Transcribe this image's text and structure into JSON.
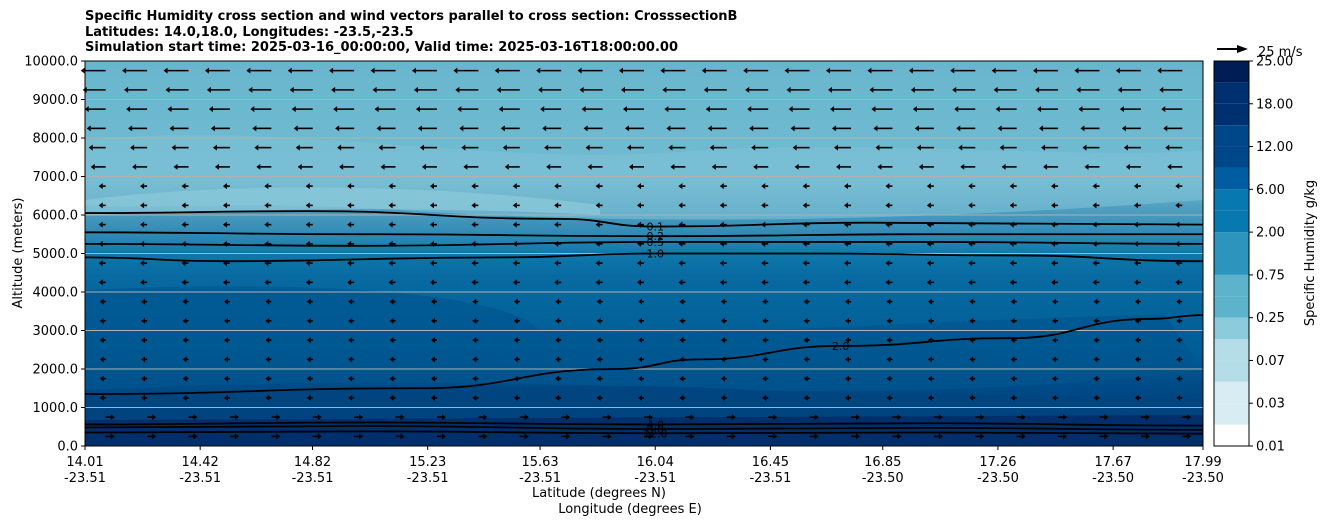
{
  "title": {
    "line1": "Specific Humidity cross section and wind vectors parallel to cross section: CrosssectionB",
    "line2": "Latitudes: 14.0,18.0, Longitudes: -23.5,-23.5",
    "line3": "Simulation start time: 2025-03-16_00:00:00, Valid time: 2025-03-16T18:00:00.00"
  },
  "chart_data": {
    "type": "heatmap",
    "xlabel_1": "Latitude (degrees N)",
    "xlabel_2": "Longitude (degrees E)",
    "ylabel": "Altitude (meters)",
    "ylim": [
      0,
      10000
    ],
    "xlim": [
      14.01,
      17.99
    ],
    "grid": "horizontal",
    "x_ticks_lat": [
      "14.01",
      "14.42",
      "14.82",
      "15.23",
      "15.63",
      "16.04",
      "16.45",
      "16.85",
      "17.26",
      "17.67",
      "17.99"
    ],
    "x_ticks_lon": [
      "-23.51",
      "-23.51",
      "-23.51",
      "-23.51",
      "-23.51",
      "-23.51",
      "-23.51",
      "-23.50",
      "-23.50",
      "-23.50",
      "-23.50"
    ],
    "y_ticks": [
      "0.0",
      "1000.0",
      "2000.0",
      "3000.0",
      "4000.0",
      "5000.0",
      "6000.0",
      "7000.0",
      "8000.0",
      "9000.0",
      "10000.0"
    ],
    "colorbar": {
      "label": "Specific Humidity g/kg",
      "ticks": [
        "0.01",
        "0.03",
        "0.07",
        "0.25",
        "0.75",
        "2.00",
        "6.00",
        "12.00",
        "18.00",
        "25.00"
      ]
    },
    "quiver_key": "25 m/s",
    "contour_labels": [
      "0.1",
      "0.2",
      "0.5",
      "1.0",
      "2.0",
      "4.0",
      "8.0",
      "12.0"
    ],
    "contours": [
      {
        "level": "12.0",
        "points": [
          [
            14.01,
            350
          ],
          [
            15.0,
            380
          ],
          [
            16.04,
            330
          ],
          [
            17.0,
            350
          ],
          [
            17.99,
            320
          ]
        ]
      },
      {
        "level": "8.0",
        "points": [
          [
            14.01,
            480
          ],
          [
            15.0,
            520
          ],
          [
            16.04,
            440
          ],
          [
            17.0,
            470
          ],
          [
            17.99,
            420
          ]
        ]
      },
      {
        "level": "4.0",
        "points": [
          [
            14.01,
            560
          ],
          [
            15.0,
            610
          ],
          [
            16.04,
            560
          ],
          [
            17.0,
            590
          ],
          [
            17.99,
            530
          ]
        ]
      },
      {
        "level": "2.0",
        "points": [
          [
            14.01,
            1350
          ],
          [
            15.2,
            1500
          ],
          [
            15.9,
            2000
          ],
          [
            16.2,
            2250
          ],
          [
            16.7,
            2600
          ],
          [
            17.3,
            2800
          ],
          [
            17.8,
            3300
          ],
          [
            17.99,
            3400
          ]
        ]
      },
      {
        "level": "1.0",
        "points": [
          [
            14.01,
            4900
          ],
          [
            14.5,
            4800
          ],
          [
            15.5,
            4900
          ],
          [
            16.04,
            5000
          ],
          [
            16.6,
            5000
          ],
          [
            17.3,
            4950
          ],
          [
            17.99,
            4800
          ]
        ]
      },
      {
        "level": "0.5",
        "points": [
          [
            14.01,
            5250
          ],
          [
            15.0,
            5200
          ],
          [
            16.04,
            5300
          ],
          [
            17.0,
            5300
          ],
          [
            17.99,
            5250
          ]
        ]
      },
      {
        "level": "0.2",
        "points": [
          [
            14.01,
            5550
          ],
          [
            15.0,
            5500
          ],
          [
            16.04,
            5450
          ],
          [
            17.0,
            5500
          ],
          [
            17.99,
            5500
          ]
        ]
      },
      {
        "level": "0.1",
        "points": [
          [
            14.01,
            6050
          ],
          [
            14.8,
            6100
          ],
          [
            15.7,
            5900
          ],
          [
            16.04,
            5700
          ],
          [
            16.8,
            5800
          ],
          [
            17.99,
            5750
          ]
        ]
      }
    ],
    "wind": "predominantly westward (right-to-left) flow above 7000 m, weak flow below, eastward near surface"
  }
}
